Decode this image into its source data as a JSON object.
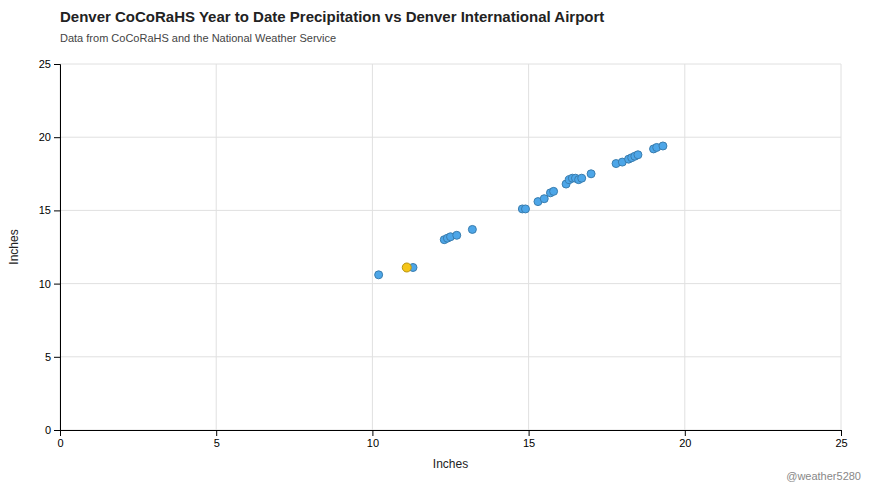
{
  "chart_data": {
    "type": "scatter",
    "title": "Denver CoCoRaHS Year to Date Precipitation vs Denver International Airport",
    "subtitle": "Data from CoCoRaHS and the National Weather Service",
    "xlabel": "Inches",
    "ylabel": "Inches",
    "annotations": [
      "@weather5280"
    ],
    "xlim": [
      0,
      25
    ],
    "ylim": [
      0,
      25
    ],
    "xticks": [
      0,
      5,
      10,
      15,
      20,
      25
    ],
    "yticks": [
      0,
      5,
      10,
      15,
      20,
      25
    ],
    "grid": true,
    "series": [
      {
        "color": "#4da6e8",
        "x": [
          10.2,
          11.3,
          12.3,
          12.4,
          12.5,
          12.7,
          13.2,
          14.8,
          14.9,
          15.3,
          15.5,
          15.7,
          15.8,
          16.2,
          16.3,
          16.4,
          16.5,
          16.6,
          16.7,
          17.0,
          17.8,
          18.0,
          18.2,
          18.3,
          18.4,
          18.5,
          19.0,
          19.1,
          19.3
        ],
        "values": [
          10.6,
          11.1,
          13.0,
          13.1,
          13.2,
          13.3,
          13.7,
          15.1,
          15.1,
          15.6,
          15.8,
          16.2,
          16.3,
          16.8,
          17.1,
          17.2,
          17.2,
          17.1,
          17.2,
          17.5,
          18.2,
          18.3,
          18.5,
          18.6,
          18.7,
          18.8,
          19.2,
          19.3,
          19.4
        ]
      },
      {
        "color": "#f5c518",
        "x": [
          11.1
        ],
        "values": [
          11.1
        ]
      }
    ]
  }
}
